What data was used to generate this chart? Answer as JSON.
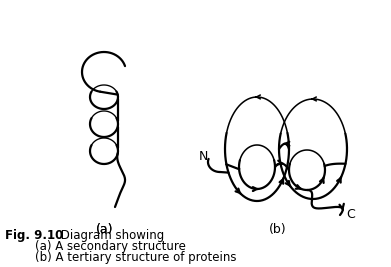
{
  "background_color": "#ffffff",
  "line_color": "#000000",
  "line_width": 1.6,
  "fig_width": 3.91,
  "fig_height": 2.67,
  "dpi": 100,
  "label_a": "(a)",
  "label_b": "(b)",
  "label_N": "N",
  "label_C": "C",
  "caption_bold": "Fig. 9.10",
  "caption_normal": " Diagram showing",
  "caption_line2": "        (a) A secondary structure",
  "caption_line3": "        (b) A tertiary structure of proteins",
  "caption_fontsize": 8.5
}
